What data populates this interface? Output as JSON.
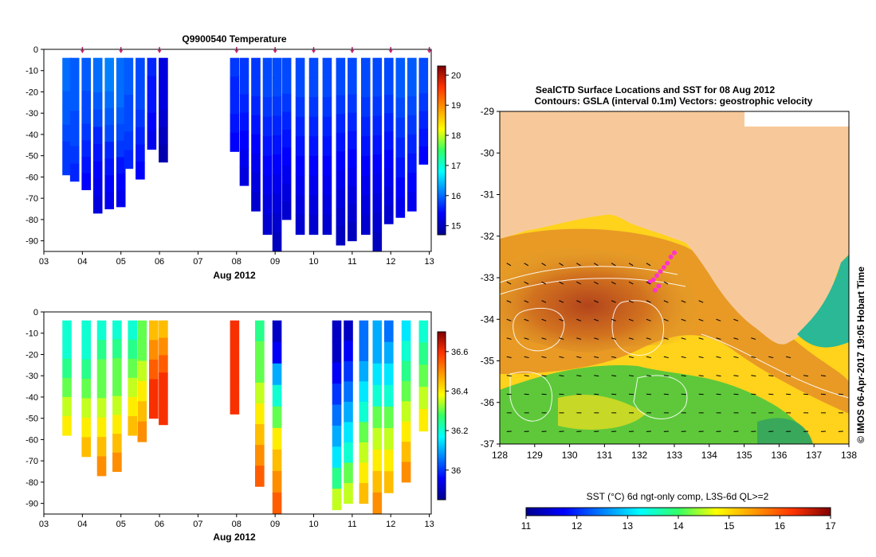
{
  "figure": {
    "credit": "© IMOS 06-Apr-2017 19:05 Hobart Time"
  },
  "chart_data": [
    {
      "type": "heatmap",
      "id": "temperature-section",
      "title": "Q9900540  Temperature",
      "xlabel": "Aug 2012",
      "ylabel": "",
      "x_ticks": [
        "03",
        "04",
        "05",
        "06",
        "07",
        "08",
        "09",
        "10",
        "11",
        "12",
        "13"
      ],
      "y_ticks": [
        0,
        -10,
        -20,
        -30,
        -40,
        -50,
        -60,
        -70,
        -80,
        -90
      ],
      "ylim": [
        -95,
        0
      ],
      "xlim": [
        3,
        13.05
      ],
      "profile_marker_days": [
        4.0,
        5.0,
        6.0,
        8.0,
        9.0,
        10.0,
        11.0,
        12.0,
        13.0
      ],
      "colorbar": {
        "min": 14.7,
        "max": 20.3,
        "ticks": [
          15,
          16,
          17,
          18,
          19,
          20
        ],
        "colormap": "jet"
      },
      "profiles": [
        {
          "day": 3.6,
          "max_depth": -59,
          "temps": [
            16.0,
            16.0,
            15.9,
            15.9,
            15.8,
            15.7,
            15.7
          ]
        },
        {
          "day": 3.8,
          "max_depth": -62,
          "temps": [
            15.9,
            15.9,
            15.9,
            15.8,
            15.8,
            15.7,
            15.6
          ]
        },
        {
          "day": 4.1,
          "max_depth": -66,
          "temps": [
            15.9,
            15.9,
            15.8,
            15.8,
            15.7,
            15.6,
            15.5,
            15.4
          ]
        },
        {
          "day": 4.4,
          "max_depth": -77,
          "temps": [
            16.0,
            16.0,
            15.9,
            15.8,
            15.6,
            15.5,
            15.4,
            15.3,
            15.2
          ]
        },
        {
          "day": 4.7,
          "max_depth": -75,
          "temps": [
            16.1,
            16.1,
            16.0,
            15.9,
            15.8,
            15.6,
            15.5,
            15.4,
            15.3
          ]
        },
        {
          "day": 5.0,
          "max_depth": -74,
          "temps": [
            16.0,
            16.0,
            16.0,
            15.9,
            15.8,
            15.7,
            15.5,
            15.4,
            15.3
          ]
        },
        {
          "day": 5.2,
          "max_depth": -56,
          "temps": [
            15.9,
            15.9,
            15.8,
            15.8,
            15.7,
            15.6
          ]
        },
        {
          "day": 5.5,
          "max_depth": -61,
          "temps": [
            15.8,
            15.8,
            15.8,
            15.7,
            15.6,
            15.5,
            15.4
          ]
        },
        {
          "day": 5.8,
          "max_depth": -47,
          "temps": [
            15.6,
            15.5,
            15.5,
            15.4,
            15.3
          ]
        },
        {
          "day": 6.1,
          "max_depth": -53,
          "temps": [
            15.2,
            15.2,
            15.2,
            15.1,
            15.0,
            14.9
          ]
        },
        {
          "day": 7.95,
          "max_depth": -48,
          "temps": [
            15.7,
            15.6,
            15.6,
            15.5,
            15.4
          ]
        },
        {
          "day": 8.2,
          "max_depth": -64,
          "temps": [
            15.7,
            15.7,
            15.6,
            15.5,
            15.4,
            15.3,
            15.2
          ]
        },
        {
          "day": 8.5,
          "max_depth": -76,
          "temps": [
            15.7,
            15.7,
            15.6,
            15.5,
            15.4,
            15.3,
            15.2,
            15.1
          ]
        },
        {
          "day": 8.8,
          "max_depth": -87,
          "temps": [
            15.8,
            15.8,
            15.7,
            15.6,
            15.5,
            15.4,
            15.3,
            15.2,
            15.1
          ]
        },
        {
          "day": 9.05,
          "max_depth": -95,
          "temps": [
            15.8,
            15.8,
            15.7,
            15.6,
            15.5,
            15.4,
            15.3,
            15.2,
            15.1,
            15.0
          ]
        },
        {
          "day": 9.3,
          "max_depth": -80,
          "temps": [
            15.8,
            15.8,
            15.7,
            15.6,
            15.5,
            15.4,
            15.3,
            15.2,
            15.1
          ]
        },
        {
          "day": 9.65,
          "max_depth": -87,
          "temps": [
            15.8,
            15.8,
            15.7,
            15.6,
            15.5,
            15.4,
            15.3,
            15.2,
            15.1
          ]
        },
        {
          "day": 10.0,
          "max_depth": -87,
          "temps": [
            15.8,
            15.8,
            15.7,
            15.6,
            15.5,
            15.4,
            15.3,
            15.2,
            15.1
          ]
        },
        {
          "day": 10.35,
          "max_depth": -87,
          "temps": [
            15.8,
            15.8,
            15.7,
            15.6,
            15.5,
            15.4,
            15.3,
            15.2,
            15.1
          ]
        },
        {
          "day": 10.7,
          "max_depth": -92,
          "temps": [
            15.8,
            15.8,
            15.7,
            15.6,
            15.5,
            15.4,
            15.3,
            15.2,
            15.1,
            15.0
          ]
        },
        {
          "day": 11.0,
          "max_depth": -90,
          "temps": [
            15.8,
            15.8,
            15.7,
            15.6,
            15.5,
            15.4,
            15.3,
            15.2,
            15.1,
            15.0
          ]
        },
        {
          "day": 11.35,
          "max_depth": -87,
          "temps": [
            15.8,
            15.8,
            15.7,
            15.6,
            15.5,
            15.4,
            15.3,
            15.2,
            15.1
          ]
        },
        {
          "day": 11.65,
          "max_depth": -95,
          "temps": [
            15.8,
            15.8,
            15.7,
            15.6,
            15.5,
            15.4,
            15.3,
            15.2,
            15.1,
            15.0
          ]
        },
        {
          "day": 11.95,
          "max_depth": -82,
          "temps": [
            15.8,
            15.8,
            15.7,
            15.6,
            15.5,
            15.4,
            15.3,
            15.2,
            15.1
          ]
        },
        {
          "day": 12.25,
          "max_depth": -79,
          "temps": [
            15.9,
            15.9,
            15.8,
            15.7,
            15.6,
            15.5,
            15.4,
            15.3
          ]
        },
        {
          "day": 12.55,
          "max_depth": -76,
          "temps": [
            15.9,
            15.9,
            15.8,
            15.7,
            15.6,
            15.5,
            15.4,
            15.3
          ]
        },
        {
          "day": 12.85,
          "max_depth": -54,
          "temps": [
            15.8,
            15.8,
            15.7,
            15.6,
            15.5,
            15.4
          ]
        }
      ]
    },
    {
      "type": "heatmap",
      "id": "salinity-section",
      "title": "",
      "xlabel": "Aug 2012",
      "ylabel": "",
      "x_ticks": [
        "03",
        "04",
        "05",
        "06",
        "07",
        "08",
        "09",
        "10",
        "11",
        "12",
        "13"
      ],
      "y_ticks": [
        0,
        -10,
        -20,
        -30,
        -40,
        -50,
        -60,
        -70,
        -80,
        -90
      ],
      "ylim": [
        -95,
        0
      ],
      "xlim": [
        3,
        13.05
      ],
      "colorbar": {
        "min": 35.85,
        "max": 36.7,
        "ticks": [
          36,
          36.2,
          36.4,
          36.6
        ],
        "colormap": "jet"
      },
      "profiles": [
        {
          "day": 3.6,
          "max_depth": -58,
          "vals": [
            36.2,
            36.2,
            36.25,
            36.3,
            36.35,
            36.4
          ]
        },
        {
          "day": 4.1,
          "max_depth": -68,
          "vals": [
            36.2,
            36.2,
            36.25,
            36.3,
            36.35,
            36.4,
            36.45
          ]
        },
        {
          "day": 4.5,
          "max_depth": -77,
          "vals": [
            36.2,
            36.25,
            36.3,
            36.3,
            36.35,
            36.4,
            36.45,
            36.5
          ]
        },
        {
          "day": 4.9,
          "max_depth": -75,
          "vals": [
            36.2,
            36.25,
            36.3,
            36.3,
            36.35,
            36.4,
            36.45,
            36.5
          ]
        },
        {
          "day": 5.3,
          "max_depth": -58,
          "vals": [
            36.2,
            36.25,
            36.3,
            36.35,
            36.4,
            36.45
          ]
        },
        {
          "day": 5.55,
          "max_depth": -61,
          "vals": [
            36.3,
            36.3,
            36.35,
            36.4,
            36.45,
            36.5
          ]
        },
        {
          "day": 5.85,
          "max_depth": -50,
          "vals": [
            36.45,
            36.5,
            36.55,
            36.6,
            36.6
          ]
        },
        {
          "day": 6.1,
          "max_depth": -53,
          "vals": [
            36.45,
            36.5,
            36.55,
            36.6,
            36.6,
            36.6
          ]
        },
        {
          "day": 7.95,
          "max_depth": -48,
          "vals": [
            36.6,
            36.6,
            36.6,
            36.6,
            36.6
          ]
        },
        {
          "day": 8.6,
          "max_depth": -82,
          "vals": [
            36.25,
            36.3,
            36.3,
            36.35,
            36.4,
            36.45,
            36.5,
            36.55
          ]
        },
        {
          "day": 9.05,
          "max_depth": -95,
          "vals": [
            35.9,
            35.95,
            36.1,
            36.2,
            36.3,
            36.4,
            36.45,
            36.5,
            36.55
          ]
        },
        {
          "day": 10.6,
          "max_depth": -93,
          "vals": [
            35.9,
            35.9,
            35.95,
            36.0,
            36.05,
            36.1,
            36.15,
            36.25,
            36.35
          ]
        },
        {
          "day": 10.9,
          "max_depth": -90,
          "vals": [
            35.9,
            35.95,
            36.0,
            36.05,
            36.1,
            36.15,
            36.2,
            36.3,
            36.35
          ]
        },
        {
          "day": 11.3,
          "max_depth": -90,
          "vals": [
            36.05,
            36.05,
            36.1,
            36.15,
            36.2,
            36.3,
            36.35,
            36.4,
            36.45
          ]
        },
        {
          "day": 11.65,
          "max_depth": -95,
          "vals": [
            36.1,
            36.1,
            36.15,
            36.2,
            36.3,
            36.35,
            36.4,
            36.45,
            36.5
          ]
        },
        {
          "day": 11.95,
          "max_depth": -85,
          "vals": [
            36.05,
            36.1,
            36.15,
            36.2,
            36.3,
            36.35,
            36.4,
            36.45
          ]
        },
        {
          "day": 12.4,
          "max_depth": -80,
          "vals": [
            36.15,
            36.2,
            36.25,
            36.3,
            36.35,
            36.4,
            36.45,
            36.5
          ]
        },
        {
          "day": 12.85,
          "max_depth": -56,
          "vals": [
            36.2,
            36.25,
            36.3,
            36.35,
            36.4
          ]
        }
      ]
    },
    {
      "type": "heatmap",
      "id": "sst-map",
      "title": "SealCTD Surface Locations and SST for 08 Aug 2012",
      "subtitle": "Contours: GSLA (interval 0.1m) Vectors: geostrophic velocity",
      "xlabel": "",
      "ylabel": "",
      "xlim": [
        128,
        138
      ],
      "ylim": [
        -37,
        -29
      ],
      "x_ticks": [
        128,
        129,
        130,
        131,
        132,
        133,
        134,
        135,
        136,
        137,
        138
      ],
      "y_ticks": [
        -29,
        -30,
        -31,
        -32,
        -33,
        -34,
        -35,
        -36,
        -37
      ],
      "land_color": "#f7c99a",
      "track_color": "#ff33cc",
      "track_points": [
        [
          132.3,
          -33.1
        ],
        [
          132.4,
          -33.05
        ],
        [
          132.5,
          -32.95
        ],
        [
          132.6,
          -32.85
        ],
        [
          132.7,
          -32.75
        ],
        [
          132.8,
          -32.65
        ],
        [
          132.9,
          -32.5
        ],
        [
          133.0,
          -32.4
        ],
        [
          132.55,
          -33.2
        ],
        [
          132.45,
          -33.3
        ]
      ],
      "colorbar": {
        "label": "SST (°C) 6d ngt-only comp, L3S-6d QL>=2",
        "min": 11,
        "max": 17,
        "ticks": [
          11,
          12,
          13,
          14,
          15,
          16,
          17
        ],
        "colormap": "jet"
      }
    }
  ]
}
